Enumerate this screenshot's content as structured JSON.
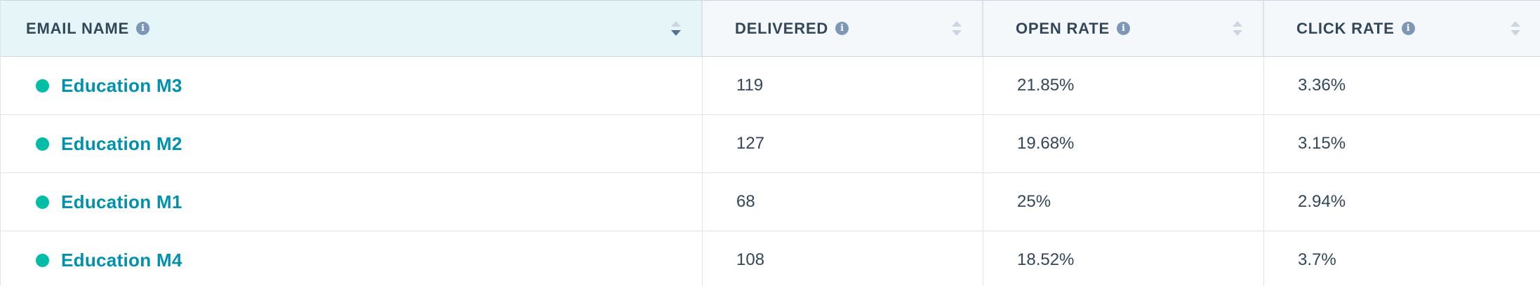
{
  "colors": {
    "header_bg": "#f5f8fa",
    "header_active_bg": "#e5f5f8",
    "link": "#0091ae",
    "status_dot": "#00bda5",
    "text": "#33475b",
    "info_icon": "#7c98b6"
  },
  "columns": [
    {
      "label": "EMAIL NAME",
      "icon": "info-icon",
      "sort": "descending"
    },
    {
      "label": "DELIVERED",
      "icon": "info-icon",
      "sort": "none"
    },
    {
      "label": "OPEN RATE",
      "icon": "info-icon",
      "sort": "none"
    },
    {
      "label": "CLICK RATE",
      "icon": "info-icon",
      "sort": "none"
    }
  ],
  "rows": [
    {
      "name": "Education M3",
      "delivered": "119",
      "open_rate": "21.85%",
      "click_rate": "3.36%"
    },
    {
      "name": "Education M2",
      "delivered": "127",
      "open_rate": "19.68%",
      "click_rate": "3.15%"
    },
    {
      "name": "Education M1",
      "delivered": "68",
      "open_rate": "25%",
      "click_rate": "2.94%"
    },
    {
      "name": "Education M4",
      "delivered": "108",
      "open_rate": "18.52%",
      "click_rate": "3.7%"
    }
  ]
}
